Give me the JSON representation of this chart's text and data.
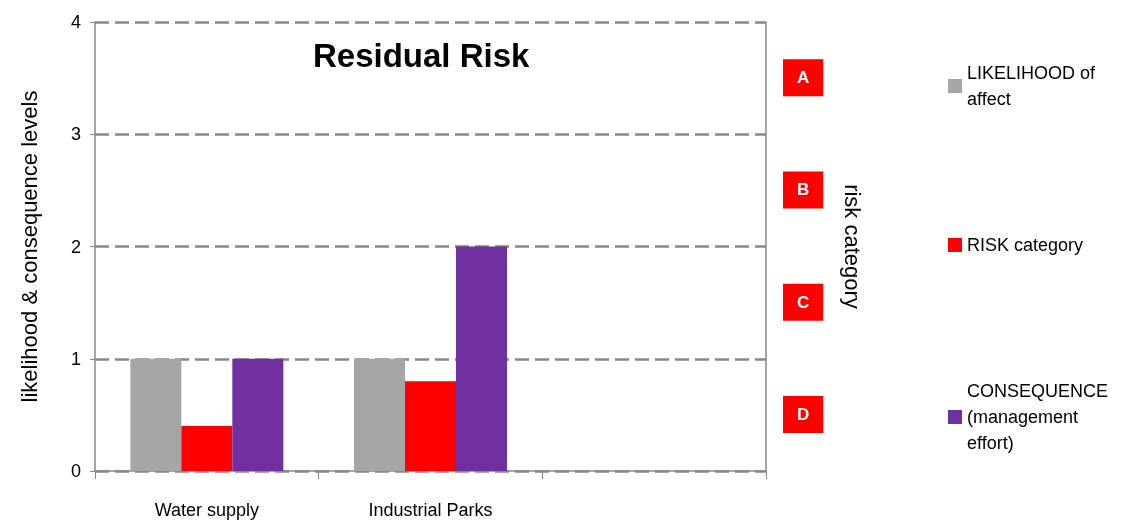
{
  "chart_data": {
    "type": "bar",
    "title": "Residual Risk",
    "ylabel": "likelihood & consequence levels",
    "y2label": "risk category",
    "categories": [
      "Water supply",
      "Industrial Parks",
      null
    ],
    "series": [
      {
        "name": "LIKELIHOOD of affect",
        "color": "#a6a6a6",
        "values": [
          1,
          1,
          null
        ]
      },
      {
        "name": "RISK category",
        "color": "#ff0000",
        "values": [
          0.4,
          0.8,
          null
        ]
      },
      {
        "name": "CONSEQUENCE (management effort)",
        "color": "#7030a0",
        "values": [
          1,
          2,
          null
        ]
      }
    ],
    "ylim": [
      0,
      4
    ],
    "yticks": [
      0,
      1,
      2,
      3,
      4
    ],
    "annotations": [
      "A",
      "B",
      "C",
      "D"
    ],
    "grid": "y",
    "legend": "right"
  }
}
